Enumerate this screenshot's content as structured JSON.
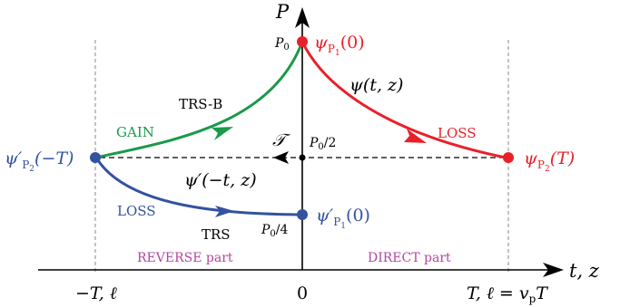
{
  "axes": {
    "y_label": "P",
    "x_label": "t, z",
    "tick_left": "−T, ℓ",
    "tick_origin": "0",
    "tick_right": "T, ℓ = v",
    "tick_right_sub": "p",
    "tick_right_tail": "T"
  },
  "levels": {
    "p0": {
      "base": "P",
      "sub": "0"
    },
    "p0_half": {
      "base": "P",
      "sub": "0",
      "tail": "/2"
    },
    "p0_quarter": {
      "base": "P",
      "sub": "0",
      "tail": "/4"
    }
  },
  "points": {
    "psi_p1_0": {
      "psi": "ψ",
      "sub": "P",
      "subsub": "1",
      "arg": "(0)",
      "color": "#e8202a"
    },
    "psi_p2_T": {
      "psi": "ψ",
      "sub": "P",
      "subsub": "2",
      "arg": "(T)",
      "color": "#e8202a"
    },
    "psi_prime_p2_minusT": {
      "psi": "ψ′",
      "sub": "P",
      "subsub": "2",
      "arg": "(−T)",
      "color": "#3452a0"
    },
    "psi_prime_p1_0": {
      "psi": "ψ′",
      "sub": "P",
      "subsub": "1",
      "arg": "(0)",
      "color": "#3452a0"
    }
  },
  "curve_labels": {
    "psi_tz": "ψ(t, z)",
    "psi_prime_minus_t_z": "ψ′(−t, z)",
    "script_T": "𝒯",
    "trs_b": "TRS-B",
    "trs": "TRS",
    "gain": "GAIN",
    "loss_right": "LOSS",
    "loss_left": "LOSS"
  },
  "regions": {
    "reverse": "REVERSE part",
    "direct": "DIRECT part"
  },
  "colors": {
    "loss_red": "#e8202a",
    "gain_green": "#1a9a4a",
    "reverse_blue": "#3452a0",
    "region_magenta": "#b4469e",
    "axis": "#000000",
    "dashed_guides": "#888888"
  },
  "icons": {
    "y_axis_arrow": "arrow-up-icon",
    "x_axis_arrow": "arrow-right-icon",
    "red_curve_arrow": "arrowhead-icon",
    "green_curve_arrow": "arrowhead-icon",
    "blue_curve_arrow": "arrowhead-icon",
    "dashed_arrow": "arrowhead-left-icon"
  }
}
